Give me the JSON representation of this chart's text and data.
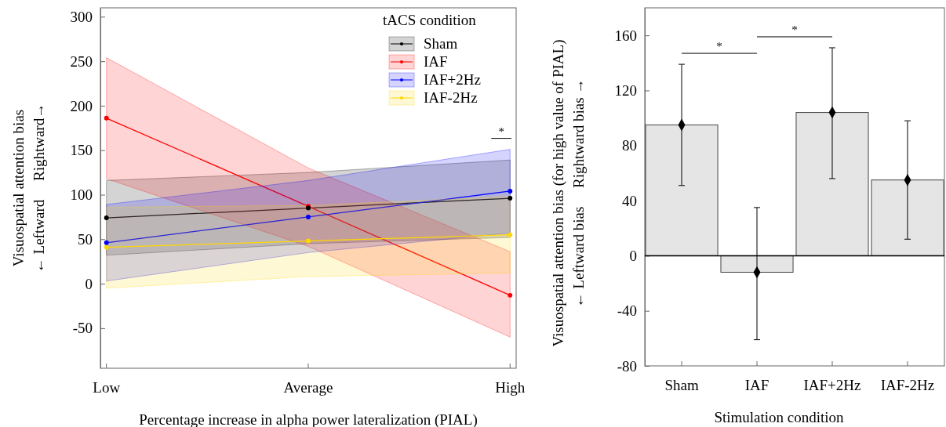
{
  "chart_data": [
    {
      "type": "line",
      "categories": [
        "Low",
        "Average",
        "High"
      ],
      "xlabel": "Percentage increase in alpha power lateralization (PIAL)",
      "ylabel": "Visuospatial attention bias\n← Leftward     Rightward→",
      "ylim": [
        -95,
        310
      ],
      "yticks": [
        -50,
        0,
        50,
        100,
        150,
        200,
        250,
        300
      ],
      "legend": "top right",
      "legend_title": "tACS condition",
      "marker": "circle",
      "annotations": [
        "*"
      ],
      "series": [
        {
          "name": "Sham",
          "color": "#000000",
          "values": [
            74,
            85,
            96
          ],
          "lower": [
            32,
            45,
            52
          ],
          "upper": [
            116,
            125,
            139
          ]
        },
        {
          "name": "IAF",
          "color": "#ff0000",
          "values": [
            186,
            87,
            -13
          ],
          "lower": [
            118,
            42,
            -60
          ],
          "upper": [
            254,
            130,
            36
          ]
        },
        {
          "name": "IAF+2Hz",
          "color": "#0000ff",
          "values": [
            46,
            75,
            104
          ],
          "lower": [
            3,
            35,
            57
          ],
          "upper": [
            89,
            116,
            151
          ]
        },
        {
          "name": "IAF-2Hz",
          "color": "#ffd700",
          "values": [
            41,
            48,
            55
          ],
          "lower": [
            -5,
            8,
            12
          ],
          "upper": [
            86,
            88,
            98
          ]
        }
      ]
    },
    {
      "type": "bar",
      "categories": [
        "Sham",
        "IAF",
        "IAF+2Hz",
        "IAF-2Hz"
      ],
      "xlabel": "Stimulation condition",
      "ylabel": "Visuospatial attention bias (for high value of PIAL)\n← Leftward bias     Rightward bias →",
      "ylim": [
        -80,
        180
      ],
      "yticks": [
        -80,
        -40,
        0,
        40,
        80,
        120,
        160
      ],
      "annotations": [
        "*",
        "*"
      ],
      "series": [
        {
          "color": "#e5e5e5",
          "values": [
            95,
            -12,
            104,
            55
          ]
        },
        {
          "type": "scatter",
          "color": "#000000",
          "x": [
            "Sham",
            "IAF",
            "IAF+2Hz",
            "IAF-2Hz"
          ],
          "marker": "diamond",
          "values": [
            95,
            -12,
            104,
            55
          ],
          "errors": [
            [
              51,
              139
            ],
            [
              -61,
              35
            ],
            [
              56,
              151
            ],
            [
              12,
              98
            ]
          ]
        }
      ]
    }
  ]
}
